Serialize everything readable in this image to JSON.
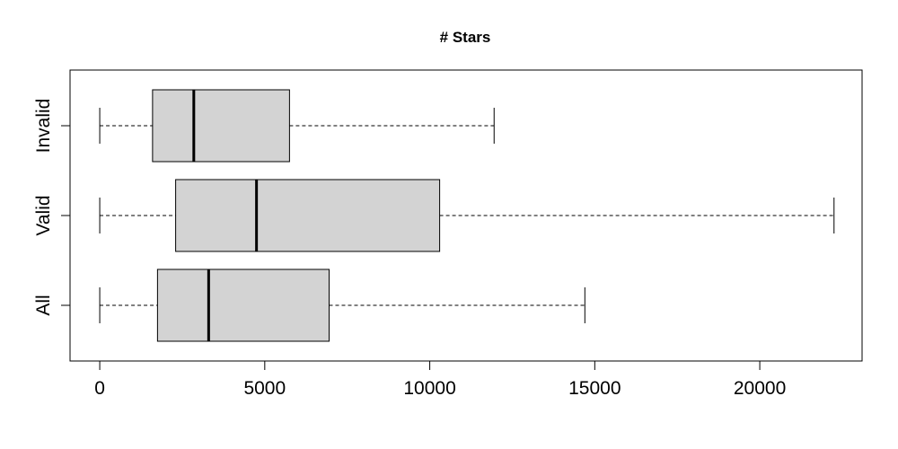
{
  "chart_data": {
    "type": "boxplot",
    "orientation": "horizontal",
    "title": "# Stars",
    "xlabel": "",
    "ylabel": "",
    "xlim": [
      -900,
      23100
    ],
    "xticks": [
      0,
      5000,
      10000,
      15000,
      20000
    ],
    "xtick_labels": [
      "0",
      "5000",
      "10000",
      "15000",
      "20000"
    ],
    "categories": [
      "All",
      "Valid",
      "Invalid"
    ],
    "boxes": [
      {
        "category": "All",
        "min": 0,
        "q1": 1750,
        "median": 3300,
        "q3": 6950,
        "max": 14700
      },
      {
        "category": "Valid",
        "min": 0,
        "q1": 2300,
        "median": 4750,
        "q3": 10300,
        "max": 22250
      },
      {
        "category": "Invalid",
        "min": 0,
        "q1": 1600,
        "median": 2850,
        "q3": 5750,
        "max": 11950
      }
    ],
    "box_fill": "#d3d3d3",
    "stroke": "#000000",
    "grid": false,
    "legend": false
  }
}
